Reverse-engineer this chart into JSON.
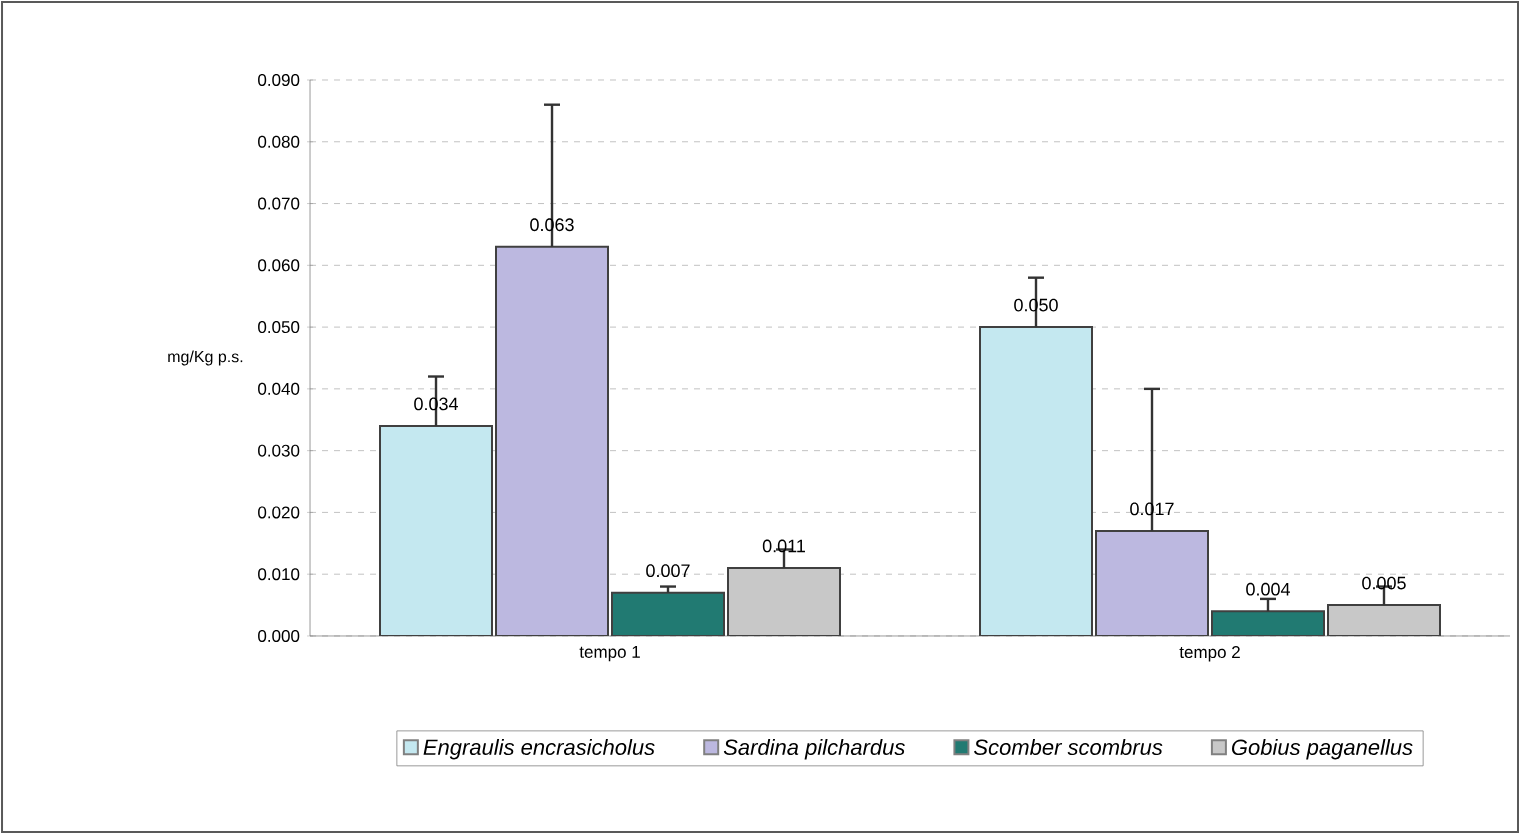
{
  "chart_data": {
    "type": "bar",
    "ylabel": "mg/Kg p.s.",
    "categories": [
      "tempo 1",
      "tempo 2"
    ],
    "series": [
      {
        "name": "*Engraulis encrasicholus*",
        "color": "#c4e8f0",
        "values": [
          0.034,
          0.05
        ],
        "errors": [
          [
            0.034,
            0.042
          ],
          [
            0.05,
            0.058
          ]
        ],
        "value_labels": [
          "0.034",
          "0.050"
        ]
      },
      {
        "name": "*Sardina pilchardus*",
        "color": "#bcb8e0",
        "values": [
          0.063,
          0.017
        ],
        "errors": [
          [
            0.063,
            0.086
          ],
          [
            0.017,
            0.04
          ]
        ],
        "value_labels": [
          "0.063",
          "0.017"
        ]
      },
      {
        "name": "*Scomber scombrus*",
        "color": "#217a72",
        "values": [
          0.007,
          0.004
        ],
        "errors": [
          [
            0.007,
            0.008
          ],
          [
            0.004,
            0.006
          ]
        ],
        "value_labels": [
          "0.007",
          "0.004"
        ]
      },
      {
        "name": "*Gobius paganellus*",
        "color": "#c8c8c8",
        "values": [
          0.011,
          0.005
        ],
        "errors": [
          [
            0.011,
            0.014
          ],
          [
            0.005,
            0.008
          ]
        ],
        "value_labels": [
          "0.011",
          "0.005"
        ]
      }
    ],
    "ylim": [
      0,
      0.09
    ],
    "yticks": [
      {
        "value": 0,
        "label": "0.000"
      },
      {
        "value": 0.01,
        "label": "0.010"
      },
      {
        "value": 0.02,
        "label": "0.020"
      },
      {
        "value": 0.03,
        "label": "0.030"
      },
      {
        "value": 0.04,
        "label": "0.040"
      },
      {
        "value": 0.05,
        "label": "0.050"
      },
      {
        "value": 0.06,
        "label": "0.060"
      },
      {
        "value": 0.07,
        "label": "0.070"
      },
      {
        "value": 0.08,
        "label": "0.080"
      },
      {
        "value": 0.09,
        "label": "0.090"
      }
    ],
    "grid": "y",
    "legend": "bottom"
  }
}
